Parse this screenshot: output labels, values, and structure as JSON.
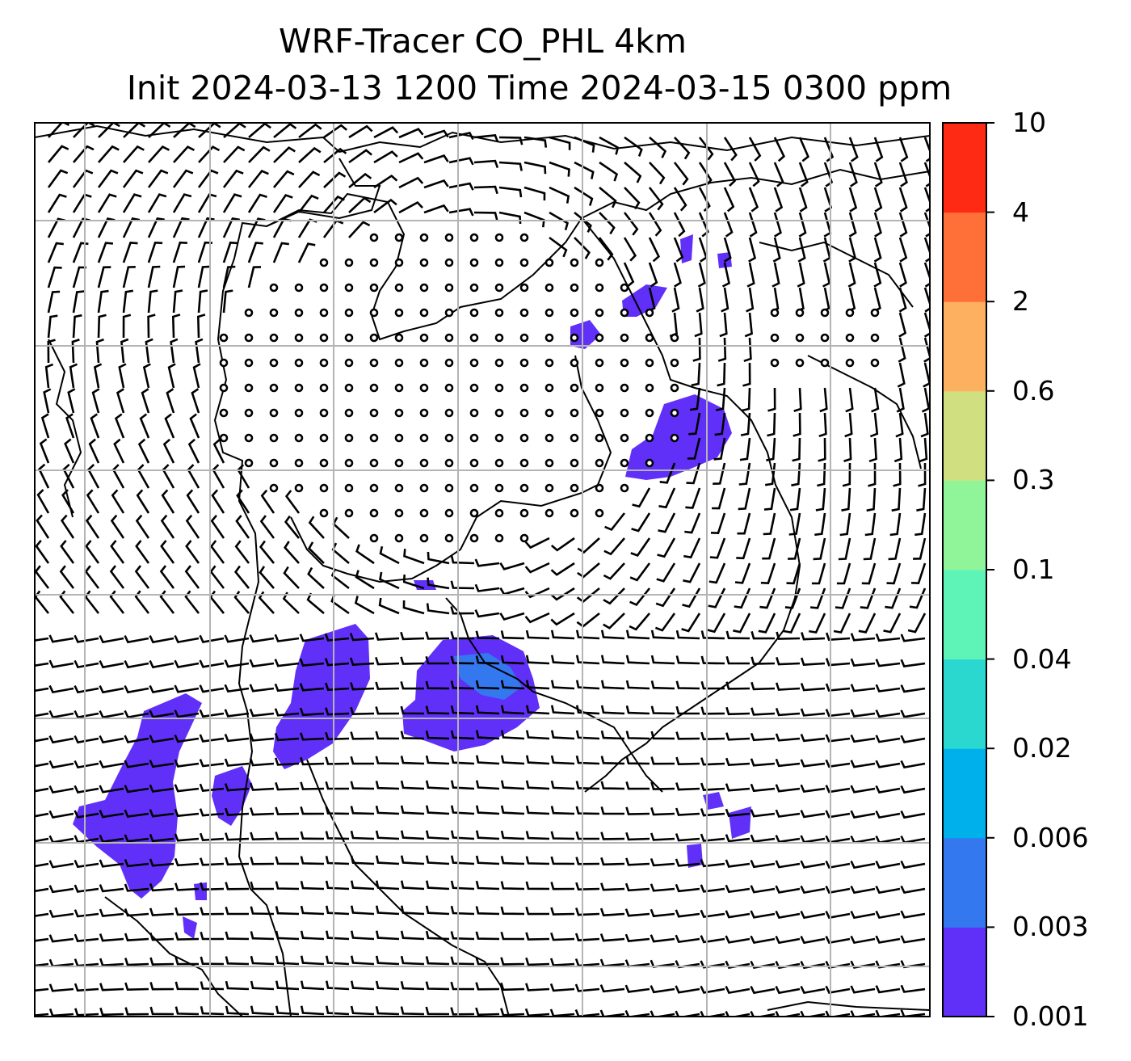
{
  "title": {
    "line1": "WRF-Tracer CO_PHL 4km",
    "line2": "Init 2024-03-13 1200 Time 2024-03-15 0300 ppm"
  },
  "colorbar": {
    "levels": [
      "0.001",
      "0.003",
      "0.006",
      "0.02",
      "0.04",
      "0.1",
      "0.3",
      "0.6",
      "2",
      "4",
      "10"
    ],
    "colors": [
      "#6030f8",
      "#3478f0",
      "#00b0ea",
      "#2ad8d0",
      "#5ef4b8",
      "#90f498",
      "#d0e080",
      "#fcb060",
      "#ff7038",
      "#ff2a14"
    ]
  },
  "map": {
    "background": "#ffffff",
    "gridlines": "on",
    "gridline_color": "#b4b4b4",
    "plume_color_main": "#6030f8",
    "plume_color_core": "#3478f0"
  }
}
